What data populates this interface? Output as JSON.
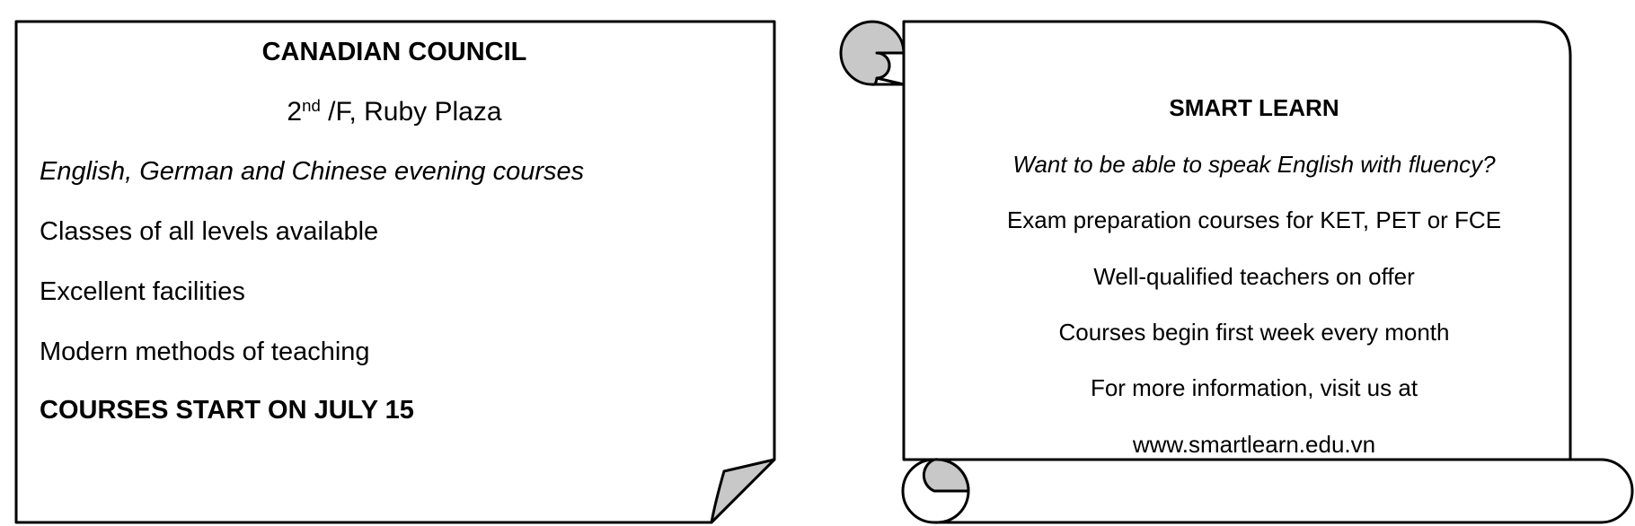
{
  "left_notice": {
    "title": "CANADIAN COUNCIL",
    "address": {
      "floor_number": "2",
      "floor_suffix": "nd",
      "rest": " /F, Ruby Plaza"
    },
    "lines": [
      "English, German and Chinese evening courses",
      "Classes of all levels available",
      "Excellent facilities",
      "Modern methods of teaching",
      "COURSES START ON JULY 15"
    ]
  },
  "right_notice": {
    "title": "SMART LEARN",
    "lines": [
      "Want to be able to speak English with fluency?",
      "Exam preparation courses for KET, PET or FCE",
      "Well-qualified teachers on offer",
      "Courses begin first week every month",
      "For more information, visit us at",
      "www.smartlearn.edu.vn"
    ]
  },
  "colors": {
    "outline": "#000000",
    "curl_fill": "#c8c8c8",
    "background": "#ffffff"
  }
}
